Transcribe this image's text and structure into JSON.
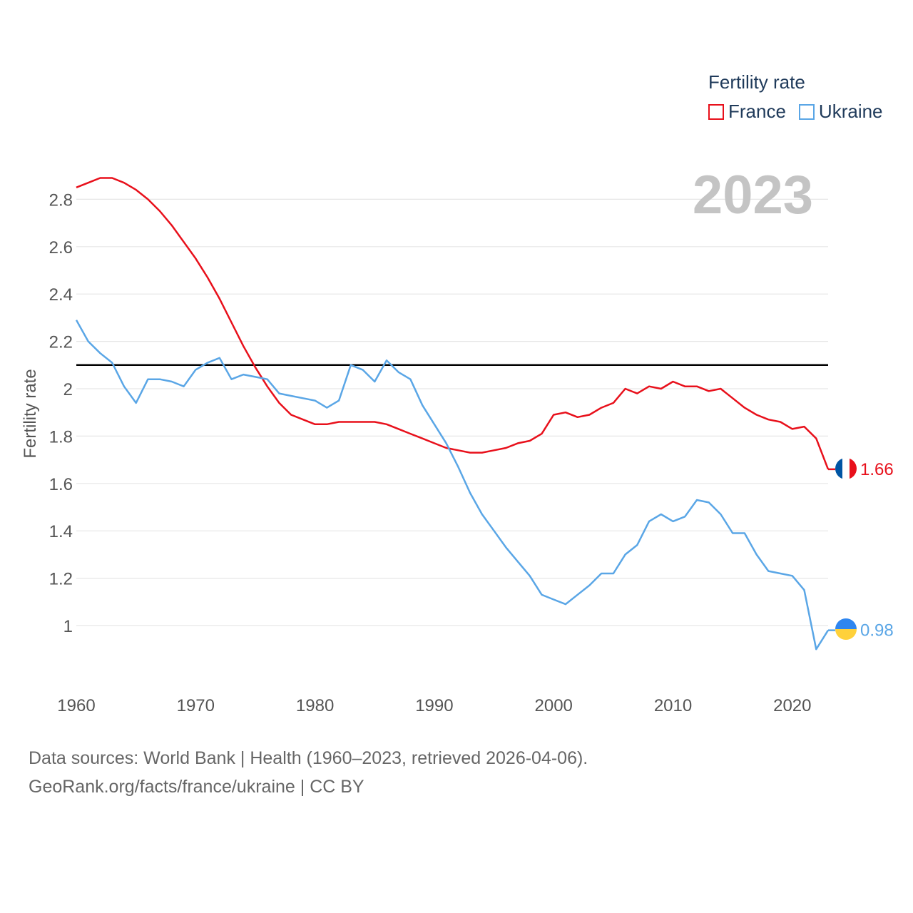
{
  "legend": {
    "title": "Fertility rate",
    "items": [
      {
        "label": "France",
        "color": "#e8101b"
      },
      {
        "label": "Ukraine",
        "color": "#5aa6e6"
      }
    ]
  },
  "footer": {
    "line1": "Data sources: World Bank | Health (1960–2023, retrieved 2026-04-06).",
    "line2": "GeoRank.org/facts/france/ukraine | CC BY"
  },
  "chart_data": {
    "type": "line",
    "title": "",
    "year_label": "2023",
    "xlabel": "",
    "ylabel": "Fertility rate",
    "xlim": [
      1960,
      2023
    ],
    "ylim": [
      0.8,
      2.9
    ],
    "x_ticks": [
      1960,
      1970,
      1980,
      1990,
      2000,
      2010,
      2020
    ],
    "y_ticks": [
      1,
      1.2,
      1.4,
      1.6,
      1.8,
      2,
      2.2,
      2.4,
      2.6,
      2.8
    ],
    "y_tick_labels": [
      "1",
      "1.2",
      "1.4",
      "1.6",
      "1.8",
      "2",
      "2.2",
      "2.4",
      "2.6",
      "2.8"
    ],
    "reference_line": {
      "y": 2.1,
      "color": "#000000"
    },
    "x": [
      1960,
      1961,
      1962,
      1963,
      1964,
      1965,
      1966,
      1967,
      1968,
      1969,
      1970,
      1971,
      1972,
      1973,
      1974,
      1975,
      1976,
      1977,
      1978,
      1979,
      1980,
      1981,
      1982,
      1983,
      1984,
      1985,
      1986,
      1987,
      1988,
      1989,
      1990,
      1991,
      1992,
      1993,
      1994,
      1995,
      1996,
      1997,
      1998,
      1999,
      2000,
      2001,
      2002,
      2003,
      2004,
      2005,
      2006,
      2007,
      2008,
      2009,
      2010,
      2011,
      2012,
      2013,
      2014,
      2015,
      2016,
      2017,
      2018,
      2019,
      2020,
      2021,
      2022,
      2023
    ],
    "series": [
      {
        "name": "France",
        "color": "#e8101b",
        "end_label": "1.66",
        "values": [
          2.85,
          2.87,
          2.89,
          2.89,
          2.87,
          2.84,
          2.8,
          2.75,
          2.69,
          2.62,
          2.55,
          2.47,
          2.38,
          2.28,
          2.18,
          2.09,
          2.01,
          1.94,
          1.89,
          1.87,
          1.85,
          1.85,
          1.86,
          1.86,
          1.86,
          1.86,
          1.85,
          1.83,
          1.81,
          1.79,
          1.77,
          1.75,
          1.74,
          1.73,
          1.73,
          1.74,
          1.75,
          1.77,
          1.78,
          1.81,
          1.89,
          1.9,
          1.88,
          1.89,
          1.92,
          1.94,
          2.0,
          1.98,
          2.01,
          2.0,
          2.03,
          2.01,
          2.01,
          1.99,
          2.0,
          1.96,
          1.92,
          1.89,
          1.87,
          1.86,
          1.83,
          1.84,
          1.79,
          1.66
        ]
      },
      {
        "name": "Ukraine",
        "color": "#5aa6e6",
        "end_label": "0.98",
        "values": [
          2.29,
          2.2,
          2.15,
          2.11,
          2.01,
          1.94,
          2.04,
          2.04,
          2.03,
          2.01,
          2.08,
          2.11,
          2.13,
          2.04,
          2.06,
          2.05,
          2.04,
          1.98,
          1.97,
          1.96,
          1.95,
          1.92,
          1.95,
          2.1,
          2.08,
          2.03,
          2.12,
          2.07,
          2.04,
          1.93,
          1.85,
          1.77,
          1.67,
          1.56,
          1.47,
          1.4,
          1.33,
          1.27,
          1.21,
          1.13,
          1.11,
          1.09,
          1.13,
          1.17,
          1.22,
          1.22,
          1.3,
          1.34,
          1.44,
          1.47,
          1.44,
          1.46,
          1.53,
          1.52,
          1.47,
          1.39,
          1.39,
          1.3,
          1.23,
          1.22,
          1.21,
          1.15,
          0.9,
          0.98
        ]
      }
    ]
  }
}
